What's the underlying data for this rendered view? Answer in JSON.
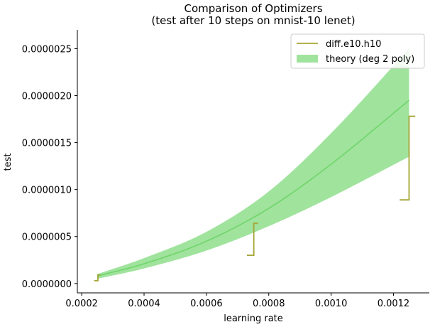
{
  "chart_data": {
    "type": "line",
    "title_line1": "Comparison of Optimizers",
    "title_line2": "(test after 10 steps on mnist-10 lenet)",
    "xlabel": "learning rate",
    "ylabel": "test",
    "xlim": [
      0.000186,
      0.001315
    ],
    "ylim": [
      -1e-07,
      2.7e-06
    ],
    "x_ticks": [
      {
        "value": 0.0002,
        "label": "0.0002"
      },
      {
        "value": 0.0004,
        "label": "0.0004"
      },
      {
        "value": 0.0006,
        "label": "0.0006"
      },
      {
        "value": 0.0008,
        "label": "0.0008"
      },
      {
        "value": 0.001,
        "label": "0.0010"
      },
      {
        "value": 0.0012,
        "label": "0.0012"
      }
    ],
    "y_ticks": [
      {
        "value": 0.0,
        "label": "0.0000000"
      },
      {
        "value": 5e-07,
        "label": "0.0000005"
      },
      {
        "value": 1e-06,
        "label": "0.0000010"
      },
      {
        "value": 1.5e-06,
        "label": "0.0000015"
      },
      {
        "value": 2e-06,
        "label": "0.0000020"
      },
      {
        "value": 2.5e-06,
        "label": "0.0000025"
      }
    ],
    "series": [
      {
        "name": "diff.e10.h10",
        "kind": "step",
        "color": "#a5a535",
        "x": [
          0.00024,
          0.000252,
          0.000252,
          0.00026,
          0.00073,
          0.000752,
          0.000752,
          0.000765,
          0.00122,
          0.00125,
          0.00125,
          0.00127
        ],
        "y": [
          3e-08,
          3e-08,
          9e-08,
          9e-08,
          3e-07,
          3e-07,
          6.4e-07,
          6.4e-07,
          8.9e-07,
          8.9e-07,
          1.78e-06,
          1.78e-06
        ],
        "segments": [
          [
            0,
            3
          ],
          [
            4,
            7
          ],
          [
            8,
            11
          ]
        ]
      },
      {
        "name": "theory (deg 2 poly)",
        "kind": "band",
        "color": "#a0e39d",
        "line_color": "#6fd56a",
        "x": [
          0.00025,
          0.0004,
          0.0006,
          0.0008,
          0.001,
          0.00125
        ],
        "mean": [
          8e-08,
          2.1e-07,
          4.5e-07,
          8e-07,
          1.27e-06,
          1.95e-06
        ],
        "lower": [
          5e-08,
          1.6e-07,
          3.5e-07,
          6.1e-07,
          9.2e-07,
          1.35e-06
        ],
        "upper": [
          1e-07,
          2.7e-07,
          5.5e-07,
          9.8e-07,
          1.6e-06,
          2.5e-06
        ]
      }
    ],
    "legend": {
      "placement": "top-right",
      "entries": [
        "diff.e10.h10",
        "theory (deg 2 poly)"
      ]
    },
    "grid": false
  }
}
